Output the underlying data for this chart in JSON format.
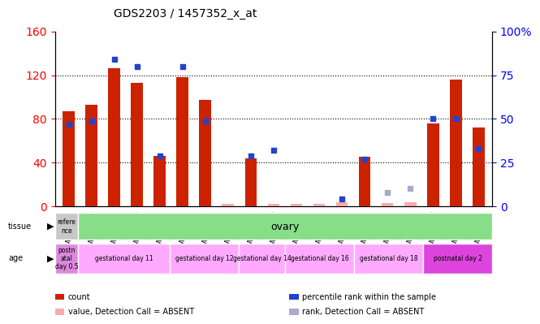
{
  "title": "GDS2203 / 1457352_x_at",
  "samples": [
    "GSM120857",
    "GSM120854",
    "GSM120855",
    "GSM120856",
    "GSM120851",
    "GSM120852",
    "GSM120853",
    "GSM120848",
    "GSM120849",
    "GSM120850",
    "GSM120845",
    "GSM120846",
    "GSM120847",
    "GSM120842",
    "GSM120843",
    "GSM120844",
    "GSM120839",
    "GSM120840",
    "GSM120841"
  ],
  "count_values": [
    87,
    93,
    126,
    113,
    46,
    118,
    97,
    0,
    44,
    0,
    0,
    0,
    0,
    45,
    3,
    3,
    76,
    116,
    72
  ],
  "rank_values": [
    47,
    49,
    84,
    80,
    29,
    80,
    49,
    0,
    29,
    32,
    0,
    0,
    4,
    27,
    0,
    0,
    50,
    50,
    33
  ],
  "absent_count": [
    0,
    0,
    0,
    0,
    0,
    0,
    0,
    1,
    0,
    1,
    1,
    1,
    1,
    0,
    1,
    1,
    0,
    0,
    0
  ],
  "absent_rank": [
    0,
    0,
    0,
    0,
    0,
    0,
    0,
    2,
    0,
    0,
    0,
    0,
    0,
    0,
    5,
    5,
    0,
    0,
    0
  ],
  "absent_count_vals": [
    0,
    0,
    0,
    0,
    0,
    0,
    0,
    2,
    0,
    2,
    2,
    2,
    4,
    0,
    3,
    4,
    0,
    0,
    0
  ],
  "absent_rank_vals": [
    0,
    0,
    0,
    0,
    0,
    0,
    0,
    0,
    0,
    0,
    0,
    0,
    0,
    0,
    8,
    10,
    0,
    0,
    0
  ],
  "ylim_left": [
    0,
    160
  ],
  "ylim_right": [
    0,
    100
  ],
  "yticks_left": [
    0,
    40,
    80,
    120,
    160
  ],
  "yticks_right": [
    0,
    25,
    50,
    75,
    100
  ],
  "ytick_labels_right": [
    "0",
    "25",
    "50",
    "75",
    "100%"
  ],
  "bar_color": "#cc2200",
  "rank_color": "#2244cc",
  "absent_bar_color": "#ffaaaa",
  "absent_rank_color": "#aaaacc",
  "bg_color": "#f0f0f0",
  "tissue_row": {
    "ref_label": "refere\nnce",
    "ref_color": "#c0c0c0",
    "main_label": "ovary",
    "main_color": "#88dd88"
  },
  "age_groups": [
    {
      "label": "postn\natal\nday 0.5",
      "color": "#dd88dd",
      "start": 0,
      "end": 1
    },
    {
      "label": "gestational day 11",
      "color": "#ffaaff",
      "start": 1,
      "end": 5
    },
    {
      "label": "gestational day 12",
      "color": "#ffaaff",
      "start": 5,
      "end": 8
    },
    {
      "label": "gestational day 14",
      "color": "#ffaaff",
      "start": 8,
      "end": 10
    },
    {
      "label": "gestational day 16",
      "color": "#ffaaff",
      "start": 10,
      "end": 13
    },
    {
      "label": "gestational day 18",
      "color": "#ffaaff",
      "start": 13,
      "end": 16
    },
    {
      "label": "postnatal day 2",
      "color": "#dd44dd",
      "start": 16,
      "end": 19
    }
  ],
  "legend_items": [
    {
      "color": "#cc2200",
      "label": "count"
    },
    {
      "color": "#2244cc",
      "label": "percentile rank within the sample"
    },
    {
      "color": "#ffaaaa",
      "label": "value, Detection Call = ABSENT"
    },
    {
      "color": "#aaaacc",
      "label": "rank, Detection Call = ABSENT"
    }
  ]
}
